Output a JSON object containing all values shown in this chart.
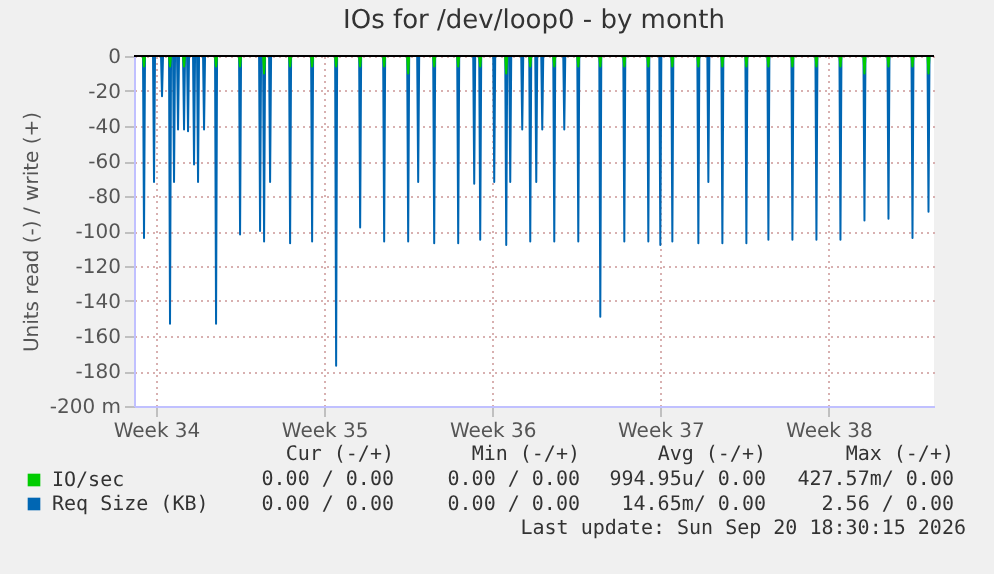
{
  "chart_data": {
    "type": "line",
    "title": "IOs for /dev/loop0 - by month",
    "ylabel": "Units read (-) / write (+)",
    "xlim": [
      "2026-08-16T02:00",
      "2026-09-18T09:30"
    ],
    "xticks": [
      {
        "value": "2026-08-17",
        "label": "Week 34"
      },
      {
        "value": "2026-08-24",
        "label": "Week 35"
      },
      {
        "value": "2026-08-31",
        "label": "Week 36"
      },
      {
        "value": "2026-09-07",
        "label": "Week 37"
      },
      {
        "value": "2026-09-14",
        "label": "Week 38"
      }
    ],
    "ylim": [
      -200,
      0
    ],
    "yticks": [
      {
        "value": -200,
        "label": "-200 m"
      },
      -180,
      -160,
      -140,
      -120,
      -100,
      -80,
      -60,
      -40,
      -20,
      0
    ],
    "grid": true,
    "marker": "none",
    "line_style": "solid",
    "legend": "bottom",
    "ref_lines": [
      {
        "axis": "y",
        "value": 0,
        "color": "#000000"
      }
    ],
    "series": [
      {
        "name": "IO/sec",
        "color": "#00cc00",
        "x": [
          "2026-08-16T11:00",
          "2026-08-16T12:00",
          "2026-08-16T13:00",
          "2026-08-17T13:00",
          "2026-08-17T14:00",
          "2026-08-17T15:00",
          "2026-08-18T03:00",
          "2026-08-18T04:00",
          "2026-08-18T05:00",
          "2026-08-19T11:00",
          "2026-08-19T12:00",
          "2026-08-19T13:00",
          "2026-08-20T11:00",
          "2026-08-20T12:00",
          "2026-08-20T13:00",
          "2026-08-21T11:00",
          "2026-08-21T12:00",
          "2026-08-21T13:00",
          "2026-08-22T13:00",
          "2026-08-22T14:00",
          "2026-08-22T15:00",
          "2026-08-23T11:00",
          "2026-08-23T12:00",
          "2026-08-23T13:00",
          "2026-08-24T11:00",
          "2026-08-24T12:00",
          "2026-08-24T13:00",
          "2026-08-25T11:00",
          "2026-08-25T12:00",
          "2026-08-25T13:00",
          "2026-08-26T11:00",
          "2026-08-26T12:00",
          "2026-08-26T13:00",
          "2026-08-27T11:00",
          "2026-08-27T12:00",
          "2026-08-27T13:00",
          "2026-08-28T13:00",
          "2026-08-28T14:00",
          "2026-08-28T15:00",
          "2026-08-29T13:00",
          "2026-08-29T14:00",
          "2026-08-29T15:00",
          "2026-08-30T11:00",
          "2026-08-30T12:00",
          "2026-08-30T13:00",
          "2026-08-31T13:00",
          "2026-08-31T14:00",
          "2026-08-31T15:00",
          "2026-09-01T13:00",
          "2026-09-01T14:00",
          "2026-09-01T15:00",
          "2026-09-02T13:00",
          "2026-09-02T14:00",
          "2026-09-02T15:00",
          "2026-09-03T13:00",
          "2026-09-03T14:00",
          "2026-09-03T15:00",
          "2026-09-04T11:00",
          "2026-09-04T12:00",
          "2026-09-04T13:00",
          "2026-09-05T11:00",
          "2026-09-05T12:00",
          "2026-09-05T13:00",
          "2026-09-06T11:00",
          "2026-09-06T12:00",
          "2026-09-06T13:00",
          "2026-09-07T11:00",
          "2026-09-07T12:00",
          "2026-09-07T13:00",
          "2026-09-08T13:00",
          "2026-09-08T14:00",
          "2026-09-08T15:00",
          "2026-09-09T13:00",
          "2026-09-09T14:00",
          "2026-09-09T15:00",
          "2026-09-10T13:00",
          "2026-09-10T14:00",
          "2026-09-10T15:00",
          "2026-09-11T11:00",
          "2026-09-11T12:00",
          "2026-09-11T13:00",
          "2026-09-12T11:00",
          "2026-09-12T12:00",
          "2026-09-12T13:00",
          "2026-09-13T11:00",
          "2026-09-13T12:00",
          "2026-09-13T13:00",
          "2026-09-14T11:00",
          "2026-09-14T12:00",
          "2026-09-14T13:00",
          "2026-09-15T11:00",
          "2026-09-15T12:00",
          "2026-09-15T13:00",
          "2026-09-16T11:00",
          "2026-09-16T12:00",
          "2026-09-16T13:00",
          "2026-09-17T11:00",
          "2026-09-17T12:00",
          "2026-09-17T13:00",
          "2026-09-18T03:00",
          "2026-09-18T04:00",
          "2026-09-18T05:00"
        ],
        "values": [
          0,
          -6,
          0,
          0,
          -6,
          0,
          0,
          -6,
          0,
          0,
          -6,
          0,
          0,
          -6,
          0,
          0,
          -10,
          0,
          0,
          -6,
          0,
          0,
          -6,
          0,
          0,
          -6,
          0,
          0,
          -6,
          0,
          0,
          -6,
          0,
          0,
          -10,
          0,
          0,
          -6,
          0,
          0,
          -6,
          0,
          0,
          -6,
          0,
          0,
          -10,
          0,
          0,
          -6,
          0,
          0,
          -6,
          0,
          0,
          -6,
          0,
          0,
          -6,
          0,
          0,
          -6,
          0,
          0,
          -6,
          0,
          0,
          -6,
          0,
          0,
          -6,
          0,
          0,
          -6,
          0,
          0,
          -6,
          0,
          0,
          -6,
          0,
          0,
          -6,
          0,
          0,
          -6,
          0,
          0,
          -6,
          0,
          0,
          -10,
          0,
          0,
          -6,
          0,
          0,
          -6,
          0,
          0,
          -10,
          0
        ]
      },
      {
        "name": "Req Size (KB)",
        "color": "#0066b3",
        "x": [
          "2026-08-16T11:00",
          "2026-08-16T12:00",
          "2026-08-16T13:00",
          "2026-08-16T21:00",
          "2026-08-16T22:00",
          "2026-08-16T23:00",
          "2026-08-17T05:00",
          "2026-08-17T06:00",
          "2026-08-17T07:00",
          "2026-08-17T13:00",
          "2026-08-17T14:00",
          "2026-08-17T15:00",
          "2026-08-17T17:00",
          "2026-08-17T18:00",
          "2026-08-17T19:00",
          "2026-08-17T21:00",
          "2026-08-17T22:00",
          "2026-08-17T23:00",
          "2026-08-18T03:00",
          "2026-08-18T04:00",
          "2026-08-18T05:00",
          "2026-08-18T07:00",
          "2026-08-18T08:00",
          "2026-08-18T09:00",
          "2026-08-18T13:00",
          "2026-08-18T14:00",
          "2026-08-18T15:00",
          "2026-08-18T17:00",
          "2026-08-18T18:00",
          "2026-08-18T19:00",
          "2026-08-18T23:00",
          "2026-08-19T00:00",
          "2026-08-19T01:00",
          "2026-08-19T11:00",
          "2026-08-19T12:00",
          "2026-08-19T13:00",
          "2026-08-20T11:00",
          "2026-08-20T12:00",
          "2026-08-20T13:00",
          "2026-08-21T07:00",
          "2026-08-21T08:00",
          "2026-08-21T09:00",
          "2026-08-21T11:00",
          "2026-08-21T12:00",
          "2026-08-21T13:00",
          "2026-08-21T17:00",
          "2026-08-21T18:00",
          "2026-08-21T19:00",
          "2026-08-22T13:00",
          "2026-08-22T14:00",
          "2026-08-22T15:00",
          "2026-08-23T11:00",
          "2026-08-23T12:00",
          "2026-08-23T13:00",
          "2026-08-24T11:00",
          "2026-08-24T12:00",
          "2026-08-24T13:00",
          "2026-08-25T11:00",
          "2026-08-25T12:00",
          "2026-08-25T13:00",
          "2026-08-26T11:00",
          "2026-08-26T12:00",
          "2026-08-26T13:00",
          "2026-08-27T11:00",
          "2026-08-27T12:00",
          "2026-08-27T13:00",
          "2026-08-27T21:00",
          "2026-08-27T22:00",
          "2026-08-27T23:00",
          "2026-08-28T13:00",
          "2026-08-28T14:00",
          "2026-08-28T15:00",
          "2026-08-29T13:00",
          "2026-08-29T14:00",
          "2026-08-29T15:00",
          "2026-08-30T05:00",
          "2026-08-30T06:00",
          "2026-08-30T07:00",
          "2026-08-30T11:00",
          "2026-08-30T12:00",
          "2026-08-30T13:00",
          "2026-08-31T01:00",
          "2026-08-31T02:00",
          "2026-08-31T03:00",
          "2026-08-31T13:00",
          "2026-08-31T14:00",
          "2026-08-31T15:00",
          "2026-08-31T17:00",
          "2026-08-31T18:00",
          "2026-08-31T19:00",
          "2026-09-01T05:00",
          "2026-09-01T06:00",
          "2026-09-01T07:00",
          "2026-09-01T13:00",
          "2026-09-01T14:00",
          "2026-09-01T15:00",
          "2026-09-01T19:00",
          "2026-09-01T20:00",
          "2026-09-01T21:00",
          "2026-09-02T01:00",
          "2026-09-02T02:00",
          "2026-09-02T03:00",
          "2026-09-02T13:00",
          "2026-09-02T14:00",
          "2026-09-02T15:00",
          "2026-09-02T23:00",
          "2026-09-03T00:00",
          "2026-09-03T01:00",
          "2026-09-03T13:00",
          "2026-09-03T14:00",
          "2026-09-03T15:00",
          "2026-09-04T11:00",
          "2026-09-04T12:00",
          "2026-09-04T13:00",
          "2026-09-05T11:00",
          "2026-09-05T12:00",
          "2026-09-05T13:00",
          "2026-09-06T11:00",
          "2026-09-06T12:00",
          "2026-09-06T13:00",
          "2026-09-06T23:00",
          "2026-09-07T00:00",
          "2026-09-07T01:00",
          "2026-09-07T11:00",
          "2026-09-07T12:00",
          "2026-09-07T13:00",
          "2026-09-08T13:00",
          "2026-09-08T14:00",
          "2026-09-08T15:00",
          "2026-09-08T23:00",
          "2026-09-09T00:00",
          "2026-09-09T01:00",
          "2026-09-09T13:00",
          "2026-09-09T14:00",
          "2026-09-09T15:00",
          "2026-09-10T13:00",
          "2026-09-10T14:00",
          "2026-09-10T15:00",
          "2026-09-11T11:00",
          "2026-09-11T12:00",
          "2026-09-11T13:00",
          "2026-09-12T11:00",
          "2026-09-12T12:00",
          "2026-09-12T13:00",
          "2026-09-13T11:00",
          "2026-09-13T12:00",
          "2026-09-13T13:00",
          "2026-09-14T11:00",
          "2026-09-14T12:00",
          "2026-09-14T13:00",
          "2026-09-15T11:00",
          "2026-09-15T12:00",
          "2026-09-15T13:00",
          "2026-09-16T11:00",
          "2026-09-16T12:00",
          "2026-09-16T13:00",
          "2026-09-17T11:00",
          "2026-09-17T12:00",
          "2026-09-17T13:00",
          "2026-09-18T03:00",
          "2026-09-18T04:00",
          "2026-09-18T05:00"
        ],
        "values": [
          0,
          -104,
          0,
          0,
          -72,
          0,
          0,
          -23,
          0,
          0,
          -153,
          0,
          0,
          -72,
          0,
          0,
          -42,
          0,
          0,
          -42,
          0,
          0,
          -43,
          0,
          0,
          -62,
          0,
          0,
          -72,
          0,
          0,
          -42,
          0,
          0,
          -153,
          0,
          0,
          -102,
          0,
          0,
          -100,
          0,
          0,
          -106,
          0,
          0,
          -72,
          0,
          0,
          -107,
          0,
          0,
          -106,
          0,
          0,
          -177,
          0,
          0,
          -98,
          0,
          0,
          -106,
          0,
          0,
          -106,
          0,
          0,
          -72,
          0,
          0,
          -107,
          0,
          0,
          -107,
          0,
          0,
          -73,
          0,
          0,
          -105,
          0,
          0,
          -72,
          0,
          0,
          -108,
          0,
          0,
          -72,
          0,
          0,
          -42,
          0,
          0,
          -106,
          0,
          0,
          -72,
          0,
          0,
          -42,
          0,
          0,
          -106,
          0,
          0,
          -42,
          0,
          0,
          -106,
          0,
          0,
          -149,
          0,
          0,
          -106,
          0,
          0,
          -106,
          0,
          0,
          -108,
          0,
          0,
          -106,
          0,
          0,
          -107,
          0,
          0,
          -72,
          0,
          0,
          -107,
          0,
          0,
          -107,
          0,
          0,
          -105,
          0,
          0,
          -105,
          0,
          0,
          -105,
          0,
          0,
          -105,
          0,
          0,
          -94,
          0,
          0,
          -93,
          0,
          0,
          -104,
          0,
          0,
          -89,
          0
        ]
      }
    ],
    "annotations": [
      "Cur (-/+)",
      "Min (-/+)",
      "Avg (-/+)",
      "Max (-/+)",
      "0.00 / 0.00",
      "0.00 / 0.00",
      "994.95u/ 0.00",
      "427.57m/ 0.00",
      "0.00 / 0.00",
      "0.00 / 0.00",
      "14.65m/ 0.00",
      "2.56 / 0.00",
      "Last update: Sun Sep 20 18:30:15 2026"
    ]
  }
}
